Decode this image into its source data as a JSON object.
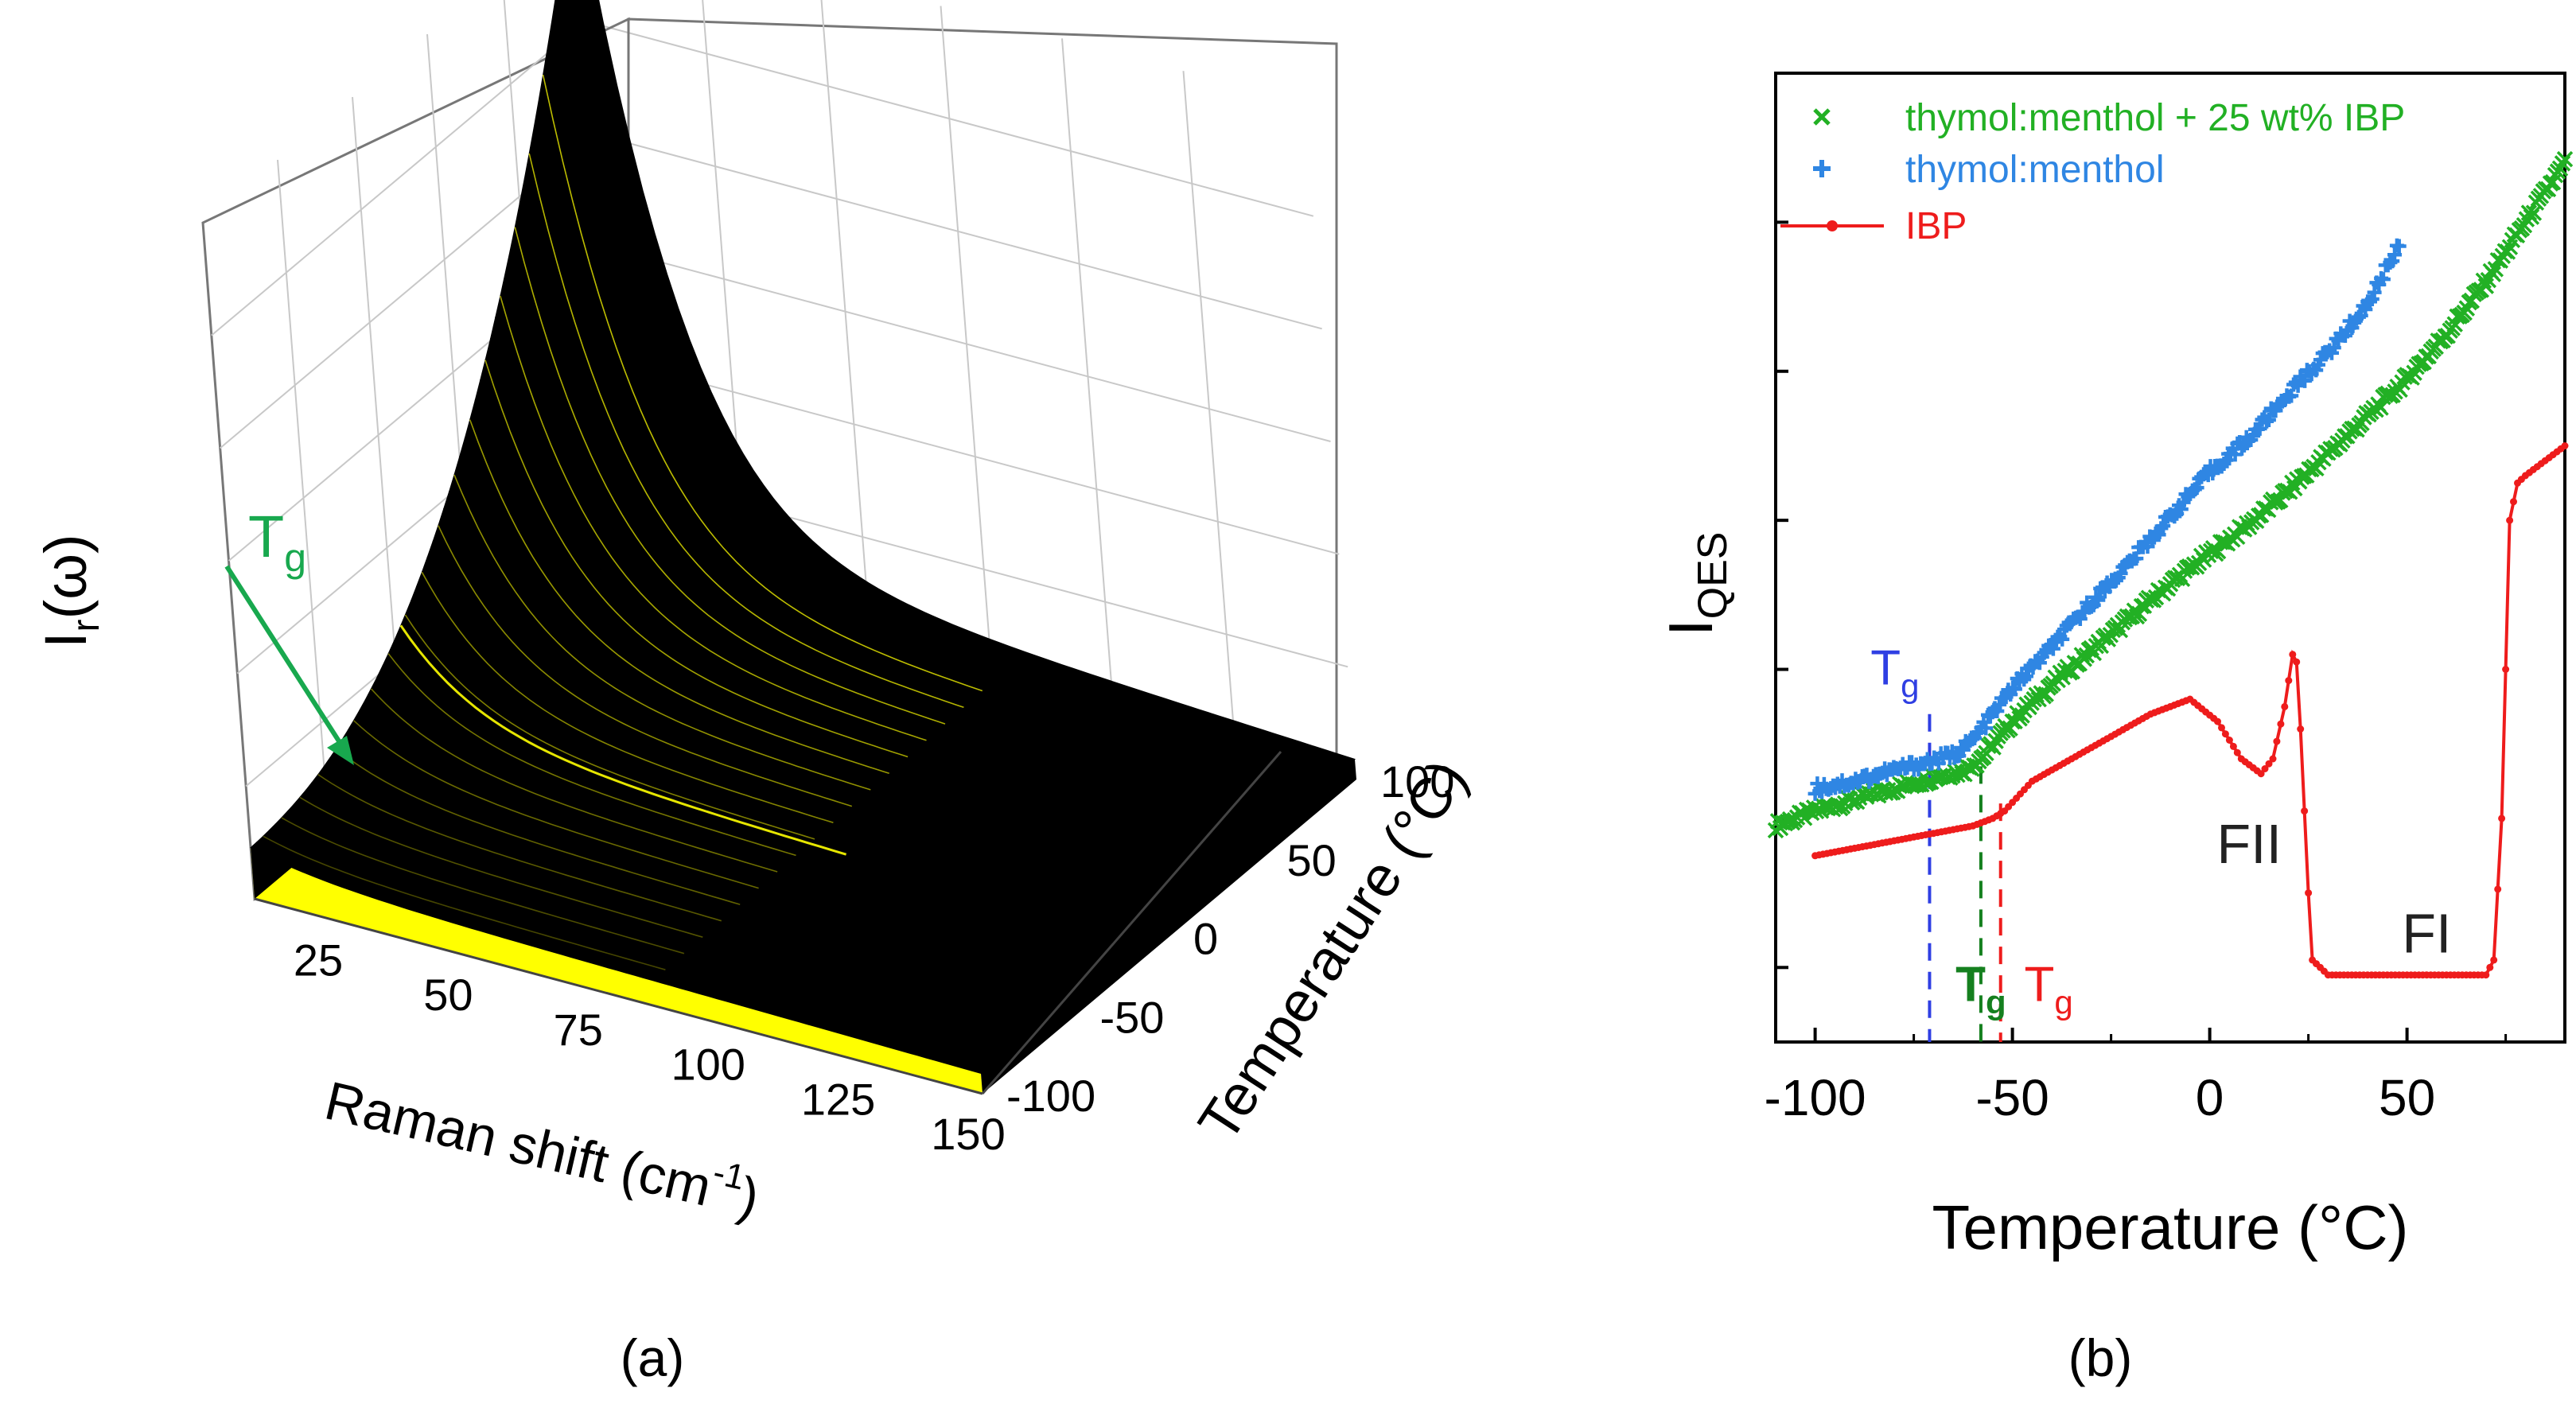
{
  "chart_data": [
    {
      "panel": "(a)",
      "type": "surface3d",
      "xlabel_main": "Raman shift (cm",
      "xlabel_sup": "-1",
      "xlabel_close": ")",
      "ylabel_main": "Temperature (°C)",
      "zlabel_main": "I",
      "zlabel_sub": "r",
      "zlabel_arg": "(ω)",
      "x_ticks": [
        "25",
        "50",
        "75",
        "100",
        "125",
        "150"
      ],
      "y_ticks": [
        "100",
        "50",
        "0",
        "-50",
        "-100"
      ],
      "x_range": [
        10,
        150
      ],
      "y_range": [
        -100,
        100
      ],
      "annotation": {
        "main": "T",
        "sub": "g",
        "color": "#18a84e"
      },
      "surface_color": "#000000",
      "highlight_color": "#ffff00"
    },
    {
      "panel": "(b)",
      "type": "scatter",
      "xlabel": "Temperature (°C)",
      "ylabel_main": "I",
      "ylabel_sub": "QES",
      "x_ticks": [
        -100,
        -50,
        0,
        50
      ],
      "x_range": [
        -110,
        90
      ],
      "y_range": [
        0,
        1.3
      ],
      "y_tick_values": [
        0.1,
        0.3,
        0.5,
        0.7,
        0.9,
        1.1
      ],
      "series": [
        {
          "name": "thymol:menthol + 25 wt% IBP",
          "color": "#22b024",
          "marker": "x",
          "x": [
            -110,
            -100,
            -90,
            -80,
            -70,
            -62,
            -58,
            -50,
            -40,
            -30,
            -20,
            -10,
            0,
            10,
            20,
            30,
            40,
            50,
            60,
            70,
            80,
            90
          ],
          "y": [
            0.29,
            0.31,
            0.325,
            0.34,
            0.355,
            0.365,
            0.38,
            0.43,
            0.48,
            0.525,
            0.57,
            0.615,
            0.655,
            0.695,
            0.74,
            0.79,
            0.84,
            0.89,
            0.95,
            1.02,
            1.1,
            1.18
          ]
        },
        {
          "name": "thymol:menthol",
          "color": "#2f86e3",
          "marker": "+",
          "x": [
            -100,
            -90,
            -80,
            -72,
            -65,
            -60,
            -55,
            -50,
            -40,
            -30,
            -20,
            -10,
            0,
            10,
            20,
            30,
            40,
            45,
            48
          ],
          "y": [
            0.34,
            0.35,
            0.365,
            0.375,
            0.385,
            0.405,
            0.44,
            0.475,
            0.53,
            0.59,
            0.645,
            0.705,
            0.765,
            0.81,
            0.87,
            0.925,
            0.99,
            1.04,
            1.07
          ]
        },
        {
          "name": "IBP",
          "color": "#ee1c1c",
          "marker": "dot-line",
          "x": [
            -100,
            -90,
            -80,
            -70,
            -60,
            -55,
            -52,
            -45,
            -35,
            -25,
            -15,
            -5,
            2,
            8,
            13,
            16,
            19,
            21,
            22,
            23,
            25,
            26,
            30,
            40,
            50,
            60,
            70,
            72,
            74,
            75,
            76,
            78,
            80,
            90
          ],
          "y": [
            0.25,
            0.26,
            0.27,
            0.28,
            0.29,
            0.3,
            0.31,
            0.35,
            0.38,
            0.41,
            0.44,
            0.46,
            0.43,
            0.38,
            0.36,
            0.38,
            0.45,
            0.52,
            0.51,
            0.42,
            0.2,
            0.11,
            0.09,
            0.09,
            0.09,
            0.09,
            0.09,
            0.11,
            0.3,
            0.5,
            0.7,
            0.75,
            0.76,
            0.8
          ]
        }
      ],
      "annotations": [
        {
          "id": "tg-blue",
          "main": "T",
          "sub": "g",
          "x": -71,
          "color": "#2f3fe3"
        },
        {
          "id": "tg-green",
          "main": "T",
          "sub": "g",
          "x": -58,
          "color": "#15801f"
        },
        {
          "id": "tg-red",
          "main": "T",
          "sub": "g",
          "x": -53,
          "color": "#ee1c1c"
        },
        {
          "id": "fii",
          "text": "FII",
          "color": "#222222"
        },
        {
          "id": "fi",
          "text": "FI",
          "color": "#222222"
        }
      ]
    }
  ],
  "panel_labels": {
    "a": "(a)",
    "b": "(b)"
  }
}
